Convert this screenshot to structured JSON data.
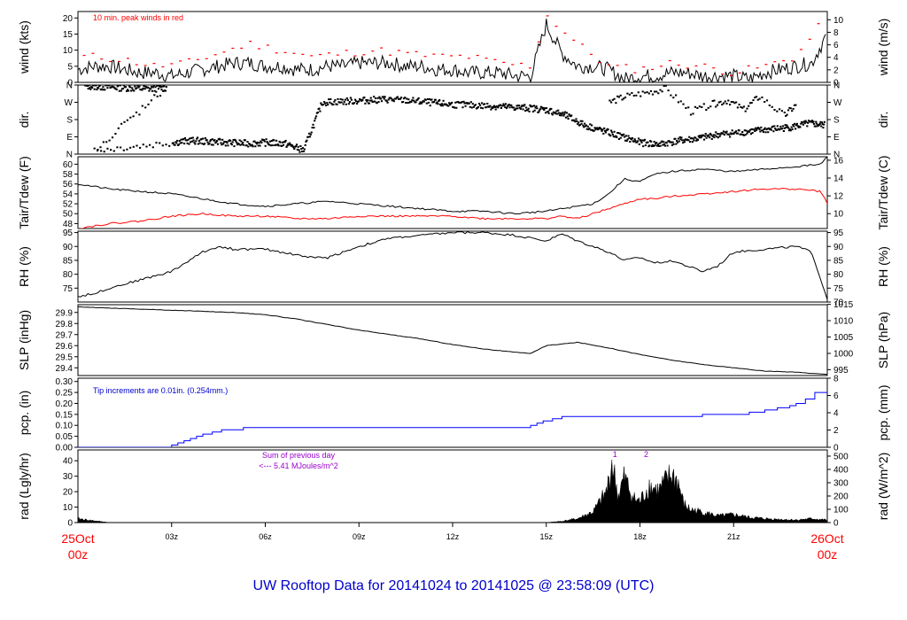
{
  "title": "UW Rooftop Data for 20141024  to  20141025 @ 23:58:09  (UTC)",
  "colors": {
    "frame": "#000000",
    "peak": "#ff0000",
    "dew": "#ff0000",
    "precip": "#0000ff",
    "title": "#0000cc",
    "date": "#ff0000",
    "sum": "#9900cc"
  },
  "x_axis": {
    "ticks": [
      {
        "hour": 3,
        "label": "03z"
      },
      {
        "hour": 6,
        "label": "06z"
      },
      {
        "hour": 9,
        "label": "09z"
      },
      {
        "hour": 12,
        "label": "12z"
      },
      {
        "hour": 15,
        "label": "15z"
      },
      {
        "hour": 18,
        "label": "18z"
      },
      {
        "hour": 21,
        "label": "21z"
      }
    ],
    "start_label": {
      "date": "25Oct",
      "hour": "00z"
    },
    "end_label": {
      "date": "26Oct",
      "hour": "00z"
    },
    "range_hours": [
      0,
      24
    ]
  },
  "chart_data": [
    {
      "id": "wind",
      "type": "line",
      "ylabel": "wind (kts)",
      "ylabel_right": "wind (m/s)",
      "ylim": [
        0,
        22
      ],
      "left_ticks": [
        0,
        5,
        10,
        15,
        20
      ],
      "right_ticks": [
        {
          "label": "0",
          "value": 0
        },
        {
          "label": "2",
          "value": 3.89
        },
        {
          "label": "4",
          "value": 7.78
        },
        {
          "label": "6",
          "value": 11.66
        },
        {
          "label": "8",
          "value": 15.55
        },
        {
          "label": "10",
          "value": 19.44
        }
      ],
      "annotation": "10 min. peak winds in red",
      "series": [
        {
          "x": [
            0,
            0.5,
            1,
            1.5,
            2,
            2.5,
            3,
            3.5,
            4,
            4.5,
            5,
            5.5,
            6,
            6.5,
            7,
            7.5,
            8,
            8.5,
            9,
            9.5,
            10,
            10.5,
            11,
            11.5,
            12,
            12.5,
            13,
            13.5,
            14,
            14.5,
            15,
            15.5,
            16,
            16.5,
            17,
            17.5,
            18,
            18.5,
            19,
            19.5,
            20,
            20.5,
            21,
            21.5,
            22,
            22.5,
            23,
            23.5,
            24
          ],
          "y": [
            4,
            5,
            5,
            4,
            3,
            3,
            2,
            3,
            4,
            5,
            6,
            6,
            5,
            5,
            4,
            4,
            5,
            5,
            6,
            6,
            6,
            5,
            5,
            4,
            4,
            3,
            3,
            3,
            2,
            2,
            18,
            9,
            5,
            5,
            4,
            1,
            2,
            2,
            3,
            3,
            2,
            2,
            2,
            1,
            3,
            4,
            5,
            6,
            15
          ]
        },
        {
          "name": "10 min. peak winds in red",
          "x": [
            0.5,
            1.5,
            2.5,
            3.5,
            4.5,
            5.5,
            6.5,
            7.5,
            8.5,
            9.5,
            10.5,
            11.5,
            12.5,
            13.5,
            14.5,
            15,
            16,
            17,
            18,
            19,
            20,
            21,
            22,
            23,
            23.8
          ],
          "y": [
            8,
            7,
            5,
            6,
            9,
            12,
            10,
            8,
            9,
            10,
            9,
            8,
            8,
            6,
            5,
            21,
            12,
            5,
            4,
            6,
            5,
            3,
            5,
            8,
            18
          ]
        }
      ]
    },
    {
      "id": "dir",
      "type": "scatter",
      "ylabel": "dir.",
      "ylabel_right": "dir.",
      "ylim": [
        0,
        360
      ],
      "left_ticks": [
        {
          "label": "N",
          "value": 360
        },
        {
          "label": "W",
          "value": 270
        },
        {
          "label": "S",
          "value": 180
        },
        {
          "label": "E",
          "value": 90
        },
        {
          "label": "N",
          "value": 0
        }
      ],
      "right_ticks": [
        {
          "label": "N",
          "value": 360
        },
        {
          "label": "W",
          "value": 270
        },
        {
          "label": "S",
          "value": 180
        },
        {
          "label": "E",
          "value": 90
        },
        {
          "label": "N",
          "value": 0
        }
      ],
      "series": [
        {
          "x": [
            0.2,
            0.8,
            1.5,
            2.2,
            2.8,
            0.5,
            3.0,
            3.6,
            4.2,
            4.8,
            5.4,
            6.0,
            6.6,
            7.2,
            7.8,
            8.5,
            9.2,
            9.8,
            10.5,
            11.2,
            11.8,
            12.5,
            13.2,
            13.8,
            14.4,
            15.0,
            15.6,
            16.2,
            16.8,
            17.4,
            18.0,
            18.6,
            19.2,
            19.8,
            20.4,
            21.0,
            21.6,
            22.2,
            22.8,
            23.4,
            23.9
          ],
          "y": [
            355,
            350,
            345,
            340,
            345,
            20,
            60,
            70,
            65,
            60,
            55,
            60,
            55,
            20,
            270,
            275,
            280,
            285,
            280,
            270,
            260,
            255,
            250,
            245,
            240,
            230,
            200,
            150,
            120,
            90,
            60,
            50,
            70,
            80,
            100,
            110,
            120,
            130,
            140,
            160,
            150
          ]
        },
        {
          "x": [
            17.0,
            17.5,
            18.2,
            18.8,
            19.6,
            20.3,
            20.8,
            21.3,
            21.8,
            22.6,
            23.0
          ],
          "y": [
            270,
            300,
            320,
            340,
            220,
            260,
            280,
            230,
            300,
            200,
            260
          ]
        }
      ]
    },
    {
      "id": "temp",
      "type": "line",
      "ylabel": "Tair/Tdew (F)",
      "ylabel_right": "Tair/Tdew (C)",
      "ylim": [
        47,
        61.5
      ],
      "left_ticks": [
        48,
        50,
        52,
        54,
        56,
        58,
        60
      ],
      "right_ticks": [
        {
          "label": "10",
          "value": 50
        },
        {
          "label": "12",
          "value": 53.6
        },
        {
          "label": "14",
          "value": 57.2
        },
        {
          "label": "16",
          "value": 60.8
        }
      ],
      "series": [
        {
          "x": [
            0,
            1,
            2,
            3,
            4,
            5,
            6,
            7,
            8,
            9,
            10,
            11,
            12,
            13,
            14,
            15,
            15.5,
            16,
            16.5,
            17,
            17.5,
            18,
            18.5,
            19,
            20,
            21,
            22,
            23,
            23.8,
            24
          ],
          "y": [
            56,
            55,
            54.5,
            54,
            53,
            52,
            51.5,
            52,
            52.5,
            52,
            51.5,
            51,
            50.5,
            50.5,
            50,
            50.5,
            51,
            51.5,
            52,
            54,
            57,
            56.5,
            58,
            58.5,
            59,
            58.5,
            59,
            59.5,
            60,
            61.5
          ]
        },
        {
          "x": [
            0,
            1,
            2,
            3,
            4,
            5,
            6,
            7,
            8,
            9,
            10,
            11,
            12,
            13,
            14,
            15,
            15.5,
            16,
            16.5,
            17,
            17.5,
            18,
            18.5,
            19,
            20,
            21,
            22,
            23,
            23.8,
            24
          ],
          "y": [
            47,
            48,
            48.5,
            49.5,
            50,
            49.5,
            49.5,
            49,
            49,
            49.5,
            49.5,
            49.5,
            49.5,
            49,
            49,
            49,
            49.5,
            49,
            50,
            51,
            52,
            53,
            53,
            53.5,
            54,
            54.5,
            55,
            55,
            54.5,
            52
          ]
        }
      ]
    },
    {
      "id": "rh",
      "type": "line",
      "ylabel": "RH (%)",
      "ylabel_right": "RH (%)",
      "ylim": [
        70,
        95.5
      ],
      "left_ticks": [
        75,
        80,
        85,
        90,
        95
      ],
      "right_ticks": [
        {
          "label": "70",
          "value": 70
        },
        {
          "label": "75",
          "value": 75
        },
        {
          "label": "80",
          "value": 80
        },
        {
          "label": "85",
          "value": 85
        },
        {
          "label": "90",
          "value": 90
        },
        {
          "label": "95",
          "value": 95
        }
      ],
      "series": [
        {
          "x": [
            0,
            0.5,
            1,
            2,
            3,
            4,
            4.5,
            5,
            6,
            7,
            7.5,
            8,
            9,
            10,
            11,
            12,
            13,
            14,
            15,
            15.5,
            16,
            17,
            17.5,
            18,
            18.5,
            19,
            20,
            20.5,
            21,
            22,
            23,
            23.5,
            24
          ],
          "y": [
            72,
            73,
            75,
            78,
            81,
            88,
            90,
            89,
            89,
            87,
            86,
            86,
            90,
            93,
            94,
            95,
            95,
            94,
            92,
            94.5,
            92,
            88,
            85,
            86,
            84,
            85,
            81,
            83,
            88,
            89,
            90,
            88,
            71
          ]
        }
      ]
    },
    {
      "id": "slp",
      "type": "line",
      "ylabel": "SLP (inHg)",
      "ylabel_right": "SLP (hPa)",
      "ylim": [
        29.33,
        29.97
      ],
      "left_ticks": [
        29.4,
        29.5,
        29.6,
        29.7,
        29.8,
        29.9
      ],
      "right_ticks": [
        {
          "label": "995",
          "value": 29.383
        },
        {
          "label": "1000",
          "value": 29.53
        },
        {
          "label": "1005",
          "value": 29.678
        },
        {
          "label": "1010",
          "value": 29.826
        },
        {
          "label": "1015",
          "value": 29.973
        }
      ],
      "series": [
        {
          "x": [
            0,
            1,
            2,
            3,
            4,
            5,
            6,
            7,
            8,
            9,
            10,
            11,
            12,
            13,
            14,
            14.5,
            15,
            16,
            17,
            18,
            19,
            20,
            21,
            22,
            23,
            24
          ],
          "y": [
            29.95,
            29.94,
            29.93,
            29.92,
            29.91,
            29.9,
            29.88,
            29.84,
            29.79,
            29.74,
            29.7,
            29.66,
            29.61,
            29.57,
            29.54,
            29.53,
            29.6,
            29.63,
            29.58,
            29.52,
            29.47,
            29.43,
            29.4,
            29.37,
            29.36,
            29.34
          ]
        }
      ]
    },
    {
      "id": "pcp",
      "type": "step",
      "ylabel": "pcp. (in)",
      "ylabel_right": "pcp. (mm)",
      "ylim": [
        0,
        0.315
      ],
      "left_ticks": [
        0.0,
        0.05,
        0.1,
        0.15,
        0.2,
        0.25,
        0.3
      ],
      "left_tick_labels": [
        "0.00",
        "0.05",
        "0.10",
        "0.15",
        "0.20",
        "0.25",
        "0.30"
      ],
      "right_ticks": [
        {
          "label": "0",
          "value": 0
        },
        {
          "label": "2",
          "value": 0.0787
        },
        {
          "label": "4",
          "value": 0.1575
        },
        {
          "label": "6",
          "value": 0.2362
        },
        {
          "label": "8",
          "value": 0.315
        }
      ],
      "annotation": "Tip increments are 0.01in. (0.254mm.)",
      "series": [
        {
          "x": [
            0,
            3.0,
            3.2,
            3.4,
            3.6,
            3.8,
            4.0,
            4.3,
            4.6,
            5.3,
            14.5,
            14.7,
            14.9,
            15.2,
            15.5,
            18.0,
            20.0,
            21.5,
            22.0,
            22.4,
            22.8,
            23.0,
            23.3,
            23.6,
            24
          ],
          "y": [
            0,
            0.01,
            0.02,
            0.03,
            0.04,
            0.05,
            0.06,
            0.07,
            0.08,
            0.09,
            0.1,
            0.11,
            0.12,
            0.13,
            0.14,
            0.14,
            0.15,
            0.16,
            0.17,
            0.18,
            0.19,
            0.2,
            0.22,
            0.25,
            0.25
          ]
        }
      ]
    },
    {
      "id": "rad",
      "type": "area",
      "ylabel": "rad (Lgly/hr)",
      "ylabel_right": "rad (W/m^2)",
      "ylim": [
        0,
        47
      ],
      "left_ticks": [
        0,
        10,
        20,
        30,
        40
      ],
      "right_ticks": [
        {
          "label": "0",
          "value": 0
        },
        {
          "label": "100",
          "value": 8.6
        },
        {
          "label": "200",
          "value": 17.2
        },
        {
          "label": "300",
          "value": 25.8
        },
        {
          "label": "400",
          "value": 34.4
        },
        {
          "label": "500",
          "value": 43.0
        }
      ],
      "annotation_lines": [
        "Sum of previous day",
        "<--- 5.41 MJoules/m^2"
      ],
      "markers": [
        {
          "label": "1",
          "x": 17.2
        },
        {
          "label": "2",
          "x": 18.2
        }
      ],
      "series": [
        {
          "x": [
            0,
            0.3,
            1,
            2,
            14.5,
            15,
            15.5,
            16,
            16.5,
            16.9,
            17.0,
            17.1,
            17.3,
            17.5,
            17.8,
            18,
            18.3,
            18.6,
            18.8,
            19.0,
            19.2,
            19.4,
            19.6,
            20,
            20.5,
            21,
            21.5,
            22,
            23,
            23.5,
            24
          ],
          "y": [
            3,
            2,
            0,
            0,
            0,
            0,
            1,
            3,
            8,
            22,
            30,
            46,
            20,
            34,
            18,
            16,
            28,
            24,
            30,
            36,
            32,
            14,
            10,
            8,
            5,
            6,
            4,
            3,
            2,
            3,
            2
          ]
        }
      ]
    }
  ]
}
